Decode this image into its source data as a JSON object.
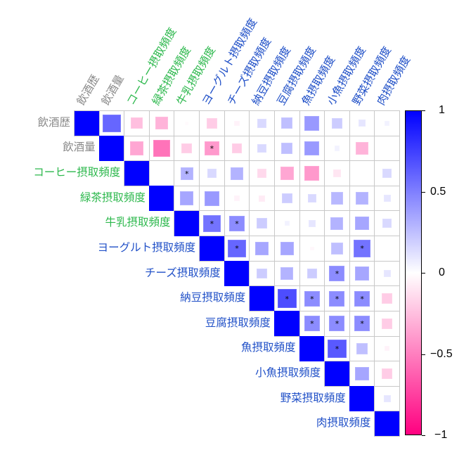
{
  "chart_data": {
    "type": "heatmap",
    "subtype": "correlation-matrix-upper-triangle",
    "title": "",
    "variables": [
      "飲酒歴",
      "飲酒量",
      "コーヒー摂取頻度",
      "緑茶摂取頻度",
      "牛乳摂取頻度",
      "ヨーグルト摂取頻度",
      "チーズ摂取頻度",
      "納豆摂取頻度",
      "豆腐摂取頻度",
      "魚摂取頻度",
      "小魚摂取頻度",
      "野菜摂取頻度",
      "肉摂取頻度"
    ],
    "label_groups": [
      {
        "color": "#8a8a8a",
        "members": [
          "飲酒歴",
          "飲酒量"
        ]
      },
      {
        "color": "#2db84d",
        "members": [
          "コーヒー摂取頻度",
          "緑茶摂取頻度",
          "牛乳摂取頻度"
        ]
      },
      {
        "color": "#1f4fc7",
        "members": [
          "ヨーグルト摂取頻度",
          "チーズ摂取頻度",
          "納豆摂取頻度",
          "豆腐摂取頻度",
          "魚摂取頻度",
          "小魚摂取頻度",
          "野菜摂取頻度",
          "肉摂取頻度"
        ]
      }
    ],
    "matrix": [
      [
        1,
        0.6,
        -0.25,
        -0.3,
        -0.02,
        -0.2,
        -0.05,
        0.15,
        0.25,
        0.4,
        0.2,
        0.1,
        0.05
      ],
      [
        null,
        1,
        -0.35,
        -0.55,
        -0.2,
        -0.4,
        -0.2,
        0.15,
        0.25,
        0.4,
        0.05,
        -0.3,
        0
      ],
      [
        null,
        null,
        1,
        0,
        0.3,
        0.15,
        0.3,
        -0.15,
        -0.35,
        -0.4,
        -0.1,
        0,
        0.15
      ],
      [
        null,
        null,
        null,
        1,
        0.35,
        0.4,
        -0.05,
        -0.08,
        0.2,
        0.15,
        0.28,
        0.3,
        0.1
      ],
      [
        null,
        null,
        null,
        null,
        1,
        0.55,
        0.45,
        0.2,
        0.05,
        0.1,
        0.3,
        0.35,
        0.15
      ],
      [
        null,
        null,
        null,
        null,
        null,
        1,
        0.6,
        0.35,
        0.35,
        -0.03,
        0.25,
        0.55,
        0
      ],
      [
        null,
        null,
        null,
        null,
        null,
        null,
        1,
        0.2,
        0.3,
        0.2,
        0.45,
        0.35,
        0.1
      ],
      [
        null,
        null,
        null,
        null,
        null,
        null,
        null,
        1,
        0.7,
        0.45,
        0.45,
        0.45,
        -0.2
      ],
      [
        null,
        null,
        null,
        null,
        null,
        null,
        null,
        null,
        1,
        0.45,
        0.45,
        0.45,
        -0.2
      ],
      [
        null,
        null,
        null,
        null,
        null,
        null,
        null,
        null,
        null,
        1,
        0.65,
        0.25,
        -0.05
      ],
      [
        null,
        null,
        null,
        null,
        null,
        null,
        null,
        null,
        null,
        null,
        1,
        0.35,
        -0.2
      ],
      [
        null,
        null,
        null,
        null,
        null,
        null,
        null,
        null,
        null,
        null,
        null,
        1,
        0.1
      ],
      [
        null,
        null,
        null,
        null,
        null,
        null,
        null,
        null,
        null,
        null,
        null,
        null,
        1
      ]
    ],
    "significant": [
      [
        1,
        5
      ],
      [
        2,
        4
      ],
      [
        4,
        5
      ],
      [
        4,
        6
      ],
      [
        5,
        6
      ],
      [
        5,
        11
      ],
      [
        6,
        10
      ],
      [
        7,
        8
      ],
      [
        7,
        9
      ],
      [
        7,
        10
      ],
      [
        7,
        11
      ],
      [
        8,
        9
      ],
      [
        8,
        10
      ],
      [
        8,
        11
      ],
      [
        9,
        10
      ]
    ],
    "significance_marker": "*",
    "colorbar": {
      "ticks": [
        1,
        0.5,
        0,
        -0.5,
        -1
      ],
      "tick_labels": [
        "1",
        "0.5",
        "0",
        "−0.5",
        "−1"
      ],
      "range": [
        -1,
        1
      ],
      "color_high": "#0000ff",
      "color_mid": "#ffffff",
      "color_low": "#ff0080"
    },
    "legend_position": "right",
    "grid": true
  }
}
